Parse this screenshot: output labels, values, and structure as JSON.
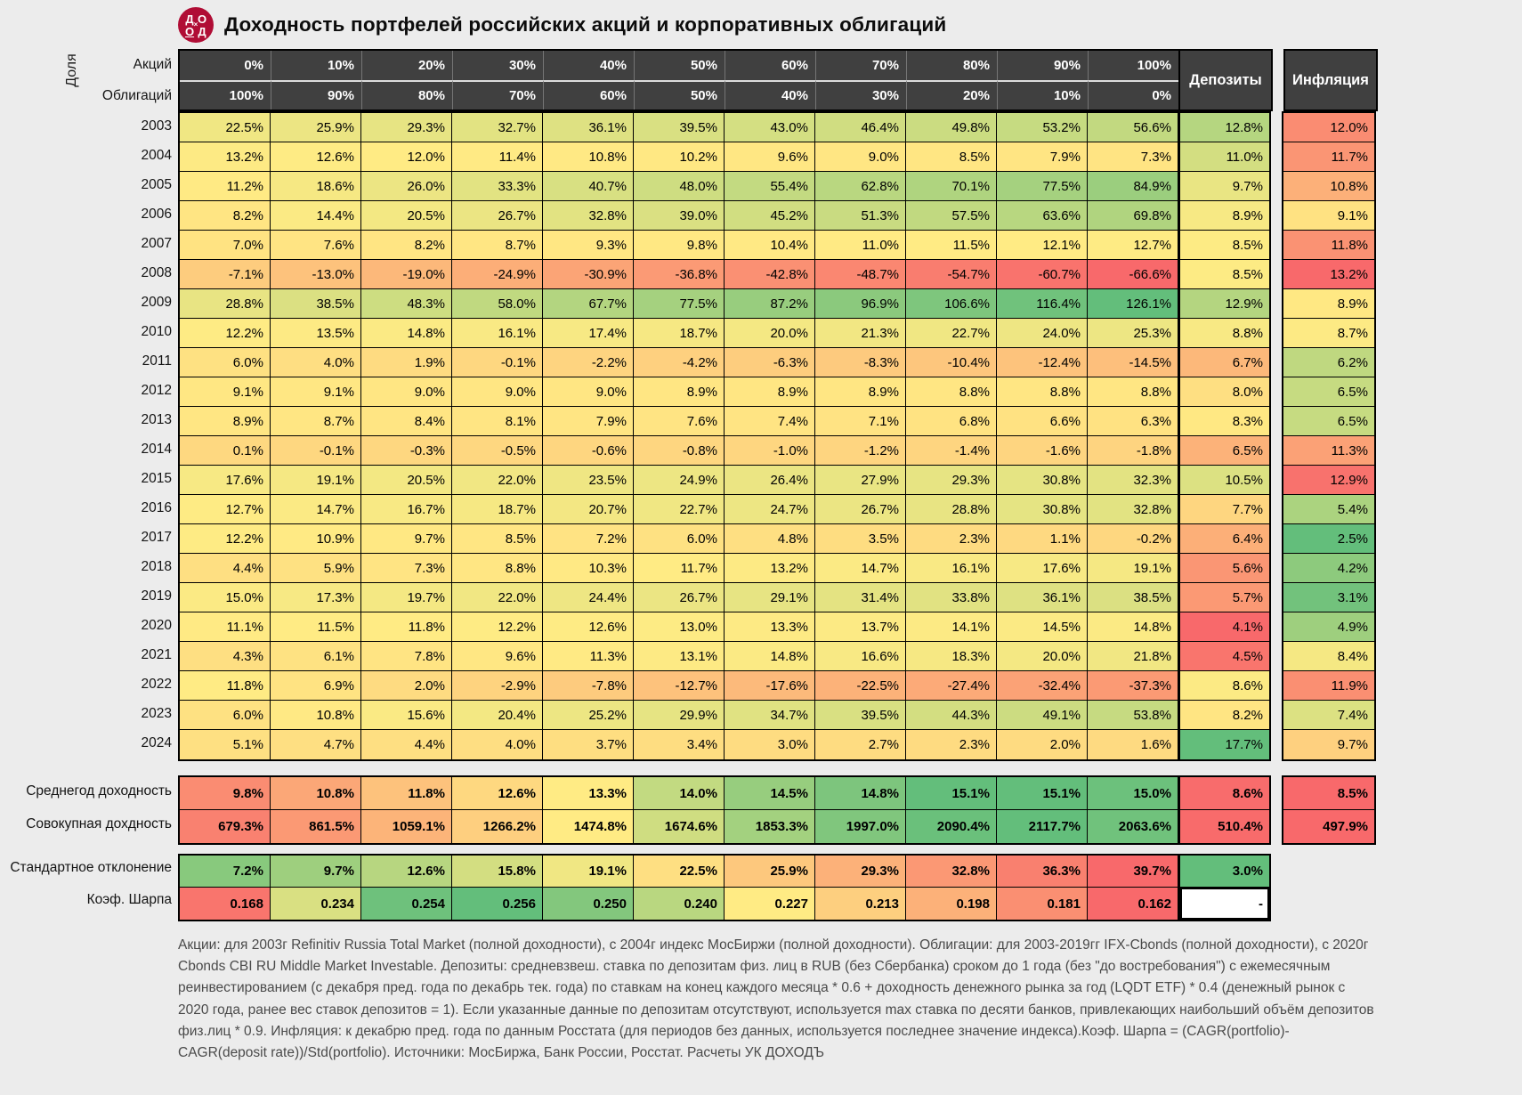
{
  "title": "Доходность портфелей российских акций и корпоративных облигаций",
  "logo_letters": [
    "Д",
    "О",
    "О",
    "Д"
  ],
  "footnote": "Акции: для 2003г Refinitiv Russia Total Market (полной доходности), с 2004г индекс МосБиржи (полной доходности). Облигации: для 2003-2019гг IFX-Cbonds (полной доходности), с 2020г Cbonds CBI RU Middle Market Investable. Депозиты: средневзвеш. ставка по депозитам физ. лиц в RUB (без Сбербанка) сроком до 1 года (без \"до востребования\") с ежемесячным реинвестированием (с декабря пред. года по декабрь тек. года) по ставкам на конец каждого месяца * 0.6 + доходность денежного рынка за год (LQDT ETF) * 0.4 (денежный рынок с 2020 года, ранее вес ставок депозитов = 1). Если указанные данные по депозитам отсутствуют, используется max ставка по десяти банков, привлекающих наибольший объём депозитов физ.лиц * 0.9. Инфляция: к декабрю пред. года по данным Росстата (для периодов без данных, используется последнее значение индекса).Коэф. Шарпа = (CAGR(portfolio)- CAGR(deposit rate))/Std(portfolio). Источники: МосБиржа, Банк России, Росстат. Расчеты УК ДОХОДЪ",
  "colors": {
    "scale_red": "#F8696B",
    "scale_yellow": "#FFEB84",
    "scale_green": "#63BE7B",
    "header_bg": "#404040",
    "logo": "#B00D35",
    "page_bg": "#ECECEC"
  },
  "chart_data": {
    "type": "heatmap",
    "title": "Доходность портфелей российских акций и корпоративных облигаций",
    "header": {
      "share_label": "Доля",
      "rows": [
        {
          "label": "Акций",
          "cells": [
            "0%",
            "10%",
            "20%",
            "30%",
            "40%",
            "50%",
            "60%",
            "70%",
            "80%",
            "90%",
            "100%"
          ]
        },
        {
          "label": "Облигаций",
          "cells": [
            "100%",
            "90%",
            "80%",
            "70%",
            "60%",
            "50%",
            "40%",
            "30%",
            "20%",
            "10%",
            "0%"
          ]
        }
      ],
      "deposits_label": "Депозиты",
      "inflation_label": "Инфляция"
    },
    "rows": [
      {
        "year": "2003",
        "values": [
          22.5,
          25.9,
          29.3,
          32.7,
          36.1,
          39.5,
          43.0,
          46.4,
          49.8,
          53.2,
          56.6
        ],
        "deposit": 12.8,
        "inflation": 12.0
      },
      {
        "year": "2004",
        "values": [
          13.2,
          12.6,
          12.0,
          11.4,
          10.8,
          10.2,
          9.6,
          9.0,
          8.5,
          7.9,
          7.3
        ],
        "deposit": 11.0,
        "inflation": 11.7
      },
      {
        "year": "2005",
        "values": [
          11.2,
          18.6,
          26.0,
          33.3,
          40.7,
          48.0,
          55.4,
          62.8,
          70.1,
          77.5,
          84.9
        ],
        "deposit": 9.7,
        "inflation": 10.8
      },
      {
        "year": "2006",
        "values": [
          8.2,
          14.4,
          20.5,
          26.7,
          32.8,
          39.0,
          45.2,
          51.3,
          57.5,
          63.6,
          69.8
        ],
        "deposit": 8.9,
        "inflation": 9.1
      },
      {
        "year": "2007",
        "values": [
          7.0,
          7.6,
          8.2,
          8.7,
          9.3,
          9.8,
          10.4,
          11.0,
          11.5,
          12.1,
          12.7
        ],
        "deposit": 8.5,
        "inflation": 11.8
      },
      {
        "year": "2008",
        "values": [
          -7.1,
          -13.0,
          -19.0,
          -24.9,
          -30.9,
          -36.8,
          -42.8,
          -48.7,
          -54.7,
          -60.7,
          -66.6
        ],
        "deposit": 8.5,
        "inflation": 13.2
      },
      {
        "year": "2009",
        "values": [
          28.8,
          38.5,
          48.3,
          58.0,
          67.7,
          77.5,
          87.2,
          96.9,
          106.6,
          116.4,
          126.1
        ],
        "deposit": 12.9,
        "inflation": 8.9
      },
      {
        "year": "2010",
        "values": [
          12.2,
          13.5,
          14.8,
          16.1,
          17.4,
          18.7,
          20.0,
          21.3,
          22.7,
          24.0,
          25.3
        ],
        "deposit": 8.8,
        "inflation": 8.7
      },
      {
        "year": "2011",
        "values": [
          6.0,
          4.0,
          1.9,
          -0.1,
          -2.2,
          -4.2,
          -6.3,
          -8.3,
          -10.4,
          -12.4,
          -14.5
        ],
        "deposit": 6.7,
        "inflation": 6.2
      },
      {
        "year": "2012",
        "values": [
          9.1,
          9.1,
          9.0,
          9.0,
          9.0,
          8.9,
          8.9,
          8.9,
          8.8,
          8.8,
          8.8
        ],
        "deposit": 8.0,
        "inflation": 6.5
      },
      {
        "year": "2013",
        "values": [
          8.9,
          8.7,
          8.4,
          8.1,
          7.9,
          7.6,
          7.4,
          7.1,
          6.8,
          6.6,
          6.3
        ],
        "deposit": 8.3,
        "inflation": 6.5
      },
      {
        "year": "2014",
        "values": [
          0.1,
          -0.1,
          -0.3,
          -0.5,
          -0.6,
          -0.8,
          -1.0,
          -1.2,
          -1.4,
          -1.6,
          -1.8
        ],
        "deposit": 6.5,
        "inflation": 11.3
      },
      {
        "year": "2015",
        "values": [
          17.6,
          19.1,
          20.5,
          22.0,
          23.5,
          24.9,
          26.4,
          27.9,
          29.3,
          30.8,
          32.3
        ],
        "deposit": 10.5,
        "inflation": 12.9
      },
      {
        "year": "2016",
        "values": [
          12.7,
          14.7,
          16.7,
          18.7,
          20.7,
          22.7,
          24.7,
          26.7,
          28.8,
          30.8,
          32.8
        ],
        "deposit": 7.7,
        "inflation": 5.4
      },
      {
        "year": "2017",
        "values": [
          12.2,
          10.9,
          9.7,
          8.5,
          7.2,
          6.0,
          4.8,
          3.5,
          2.3,
          1.1,
          -0.2
        ],
        "deposit": 6.4,
        "inflation": 2.5
      },
      {
        "year": "2018",
        "values": [
          4.4,
          5.9,
          7.3,
          8.8,
          10.3,
          11.7,
          13.2,
          14.7,
          16.1,
          17.6,
          19.1
        ],
        "deposit": 5.6,
        "inflation": 4.2
      },
      {
        "year": "2019",
        "values": [
          15.0,
          17.3,
          19.7,
          22.0,
          24.4,
          26.7,
          29.1,
          31.4,
          33.8,
          36.1,
          38.5
        ],
        "deposit": 5.7,
        "inflation": 3.1
      },
      {
        "year": "2020",
        "values": [
          11.1,
          11.5,
          11.8,
          12.2,
          12.6,
          13.0,
          13.3,
          13.7,
          14.1,
          14.5,
          14.8
        ],
        "deposit": 4.1,
        "inflation": 4.9
      },
      {
        "year": "2021",
        "values": [
          4.3,
          6.1,
          7.8,
          9.6,
          11.3,
          13.1,
          14.8,
          16.6,
          18.3,
          20.0,
          21.8
        ],
        "deposit": 4.5,
        "inflation": 8.4
      },
      {
        "year": "2022",
        "values": [
          11.8,
          6.9,
          2.0,
          -2.9,
          -7.8,
          -12.7,
          -17.6,
          -22.5,
          -27.4,
          -32.4,
          -37.3
        ],
        "deposit": 8.6,
        "inflation": 11.9
      },
      {
        "year": "2023",
        "values": [
          6.0,
          10.8,
          15.6,
          20.4,
          25.2,
          29.9,
          34.7,
          39.5,
          44.3,
          49.1,
          53.8
        ],
        "deposit": 8.2,
        "inflation": 7.4
      },
      {
        "year": "2024",
        "values": [
          5.1,
          4.7,
          4.4,
          4.0,
          3.7,
          3.4,
          3.0,
          2.7,
          2.3,
          2.0,
          1.6
        ],
        "deposit": 17.7,
        "inflation": 9.7
      }
    ],
    "summary_rows": [
      {
        "kind": "avg",
        "label": "Среднегод доходность",
        "values": [
          9.8,
          10.8,
          11.8,
          12.6,
          13.3,
          14.0,
          14.5,
          14.8,
          15.1,
          15.1,
          15.0
        ],
        "deposit": 8.6,
        "inflation": 8.5
      },
      {
        "kind": "total",
        "label": "Совокупная дохдность",
        "values": [
          679.3,
          861.5,
          1059.1,
          1266.2,
          1474.8,
          1674.6,
          1853.3,
          1997.0,
          2090.4,
          2117.7,
          2063.6
        ],
        "deposit": 510.4,
        "inflation": 497.9
      },
      {
        "kind": "std",
        "label": "Стандартное отклонение",
        "values": [
          7.2,
          9.7,
          12.6,
          15.8,
          19.1,
          22.5,
          25.9,
          29.3,
          32.8,
          36.3,
          39.7
        ],
        "deposit": 3.0
      },
      {
        "kind": "sharpe",
        "label": "Коэф. Шарпа",
        "values": [
          0.168,
          0.234,
          0.254,
          0.256,
          0.25,
          0.24,
          0.227,
          0.213,
          0.198,
          0.181,
          0.162
        ],
        "deposit_display": "-"
      }
    ],
    "color_scale": {
      "low": "#F8696B",
      "mid": "#FFEB84",
      "high": "#63BE7B",
      "note": "years+portfolio: global scale; deposits/inflation: per-column; summary rows: per-row; std & inflation inverted (low=green)"
    }
  }
}
